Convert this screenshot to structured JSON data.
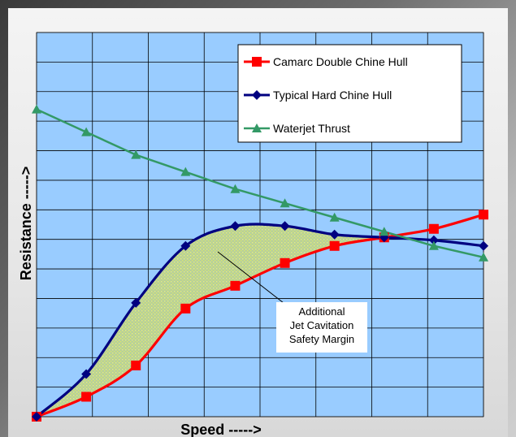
{
  "chart_data": {
    "type": "line",
    "title": "",
    "xlabel": "Speed ----->",
    "ylabel": "Resistance ----->",
    "xlim": [
      0,
      9
    ],
    "ylim": [
      0,
      13.5
    ],
    "grid": true,
    "legend_placement": "top-right",
    "series": [
      {
        "name": "Camarc Double Chine Hull",
        "color": "#ff0000",
        "marker": "square",
        "x": [
          0,
          1,
          2,
          3,
          4,
          5,
          6,
          7,
          8,
          9
        ],
        "y": [
          0,
          0.7,
          1.8,
          3.8,
          4.6,
          5.4,
          6.0,
          6.3,
          6.6,
          7.1
        ]
      },
      {
        "name": "Typical Hard Chine Hull",
        "color": "#000080",
        "marker": "diamond",
        "x": [
          0,
          1,
          2,
          3,
          4,
          5,
          6,
          7,
          8,
          9
        ],
        "y": [
          0,
          1.5,
          4.0,
          6.0,
          6.7,
          6.7,
          6.4,
          6.3,
          6.2,
          6.0
        ]
      },
      {
        "name": "Waterjet Thrust",
        "color": "#339966",
        "marker": "triangle",
        "x": [
          0,
          1,
          2,
          3,
          4,
          5,
          6,
          7,
          8,
          9
        ],
        "y": [
          10.8,
          10.0,
          9.2,
          8.6,
          8.0,
          7.5,
          7.0,
          6.5,
          6.0,
          5.6
        ]
      }
    ],
    "annotation": {
      "lines": [
        "Additional",
        "Jet Cavitation",
        "Safety Margin"
      ]
    }
  }
}
